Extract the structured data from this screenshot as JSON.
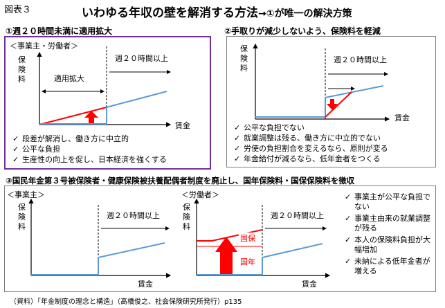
{
  "header": {
    "fig_label": "図表３",
    "title": "いわゆる年収の壁を解消する方法",
    "title_sub": "→①が唯一の解決方策"
  },
  "panel1": {
    "title": "①週２０時間未満に適用拡大",
    "perspective": "＜事業主・労働者＞",
    "ylabel": "保険料",
    "xlabel": "賃金",
    "threshold_label": "週２０時間以上",
    "expand_label": "適用拡大",
    "bullets": [
      "段差が解消し、働き方に中立的",
      "公平な負担",
      "生産性の向上を促し、日本経済を強くする"
    ]
  },
  "panel2": {
    "title": "②手取りが減少しないよう、保険料を軽減",
    "ylabel": "保険料",
    "xlabel": "賃金",
    "threshold_label": "週２０時間以上",
    "bullets": [
      "公平な負担でない",
      "就業調整は残る、働き方に中立的でない",
      "労使の負担割合を変えるなら、原則が変る",
      "年金給付が減るなら、低年金者をつくる"
    ]
  },
  "panel3": {
    "title": "③国民年金第３号被保険者・健康保険被扶養配偶者制度を廃止し、国年保険料・国保保険料を徴収",
    "employer_label": "＜事業主＞",
    "worker_label": "＜労働者＞",
    "ylabel": "保険料",
    "xlabel": "賃金",
    "threshold_label": "週２０時間以上",
    "kokuho_label": "国保",
    "kokunen_label": "国年",
    "bullets": [
      "事業主が公平な負担でない",
      "事業主由来の就業調整が残る",
      "本人の保険料負担が大幅増加",
      "未納による低年金者が増える"
    ]
  },
  "bullet_mark": "✓",
  "source": "（資料）「年金制度の理念と構造」（高橋俊之、社会保険研究所発行）p135",
  "colors": {
    "blue_line": "#5b9bd5",
    "red": "#ff0000",
    "purple_border": "#7030a0",
    "gray_border": "#7f7f7f"
  }
}
